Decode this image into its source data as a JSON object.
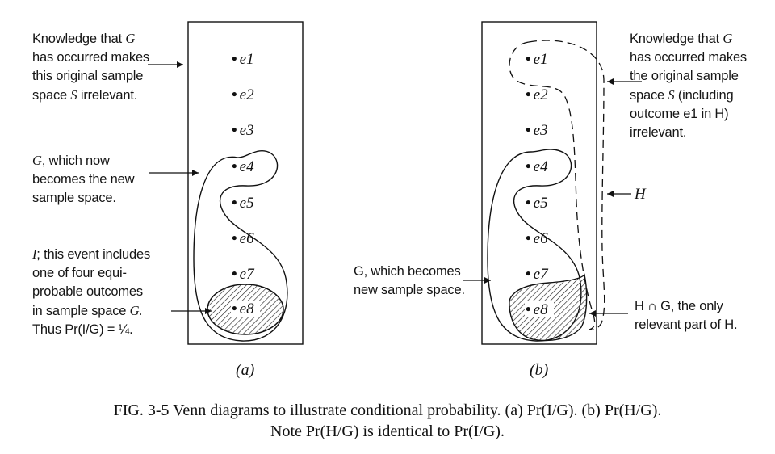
{
  "panel_a": {
    "events": [
      "e1",
      "e2",
      "e3",
      "e4",
      "e5",
      "e6",
      "e7",
      "e8"
    ],
    "label_knowledge_1": "Knowledge that",
    "label_knowledge_g": "G",
    "label_knowledge_2": "has occurred makes\nthis original sample\nspace",
    "label_knowledge_s": "S",
    "label_knowledge_3": "irrelevant.",
    "label_g_sym": "G",
    "label_g_text": ", which now\nbecomes the new\nsample space.",
    "label_i_sym": "I",
    "label_i_text": "; this event includes\none of four equi-\nprobable outcomes\nin sample space",
    "label_i_g": "G.",
    "label_i_formula": "Thus Pr(I/G) = ¼.",
    "subcaption": "(a)"
  },
  "panel_b": {
    "events": [
      "e1",
      "e2",
      "e3",
      "e4",
      "e5",
      "e6",
      "e7",
      "e8"
    ],
    "label_knowledge_1": "Knowledge that",
    "label_knowledge_g": "G",
    "label_knowledge_2": "has occurred makes\nthe original sample\nspace",
    "label_knowledge_s": "S",
    "label_knowledge_3": "(including\noutcome e1 in H)\nirrelevant.",
    "label_h": "H",
    "label_g": "G, which becomes\nnew sample space.",
    "label_hg": "H ∩ G, the only\nrelevant part of H.",
    "subcaption": "(b)"
  },
  "caption": {
    "line1": "FIG. 3-5   Venn diagrams to illustrate conditional probability. (a) Pr(I/G). (b) Pr(H/G).",
    "line2": "Note Pr(H/G) is identical to Pr(I/G)."
  }
}
